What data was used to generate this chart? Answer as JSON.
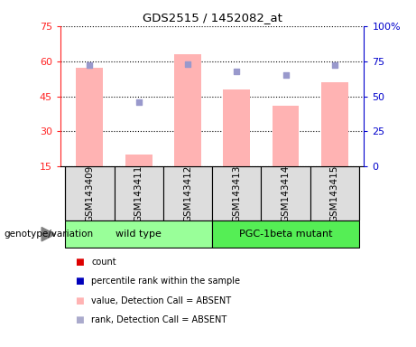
{
  "title": "GDS2515 / 1452082_at",
  "samples": [
    "GSM143409",
    "GSM143411",
    "GSM143412",
    "GSM143413",
    "GSM143414",
    "GSM143415"
  ],
  "bar_values": [
    57,
    20,
    63,
    48,
    41,
    51
  ],
  "rank_values": [
    72,
    46,
    73,
    68,
    65,
    72
  ],
  "bar_bottom": 15,
  "ylim_left": [
    15,
    75
  ],
  "ylim_right": [
    0,
    100
  ],
  "yticks_left": [
    15,
    30,
    45,
    60,
    75
  ],
  "yticks_right": [
    0,
    25,
    50,
    75,
    100
  ],
  "bar_color": "#FFB3B3",
  "rank_color": "#9999CC",
  "group_wt_color": "#99FF99",
  "group_pgc_color": "#55EE55",
  "group_label": "genotype/variation",
  "legend_colors": [
    "#DD0000",
    "#0000BB",
    "#FFB3B3",
    "#AAAACC"
  ],
  "legend_labels": [
    "count",
    "percentile rank within the sample",
    "value, Detection Call = ABSENT",
    "rank, Detection Call = ABSENT"
  ],
  "left_axis_color": "#FF2222",
  "right_axis_color": "#0000CC",
  "sample_box_color": "#DDDDDD",
  "wt_samples": [
    0,
    1,
    2
  ],
  "pgc_samples": [
    3,
    4,
    5
  ]
}
